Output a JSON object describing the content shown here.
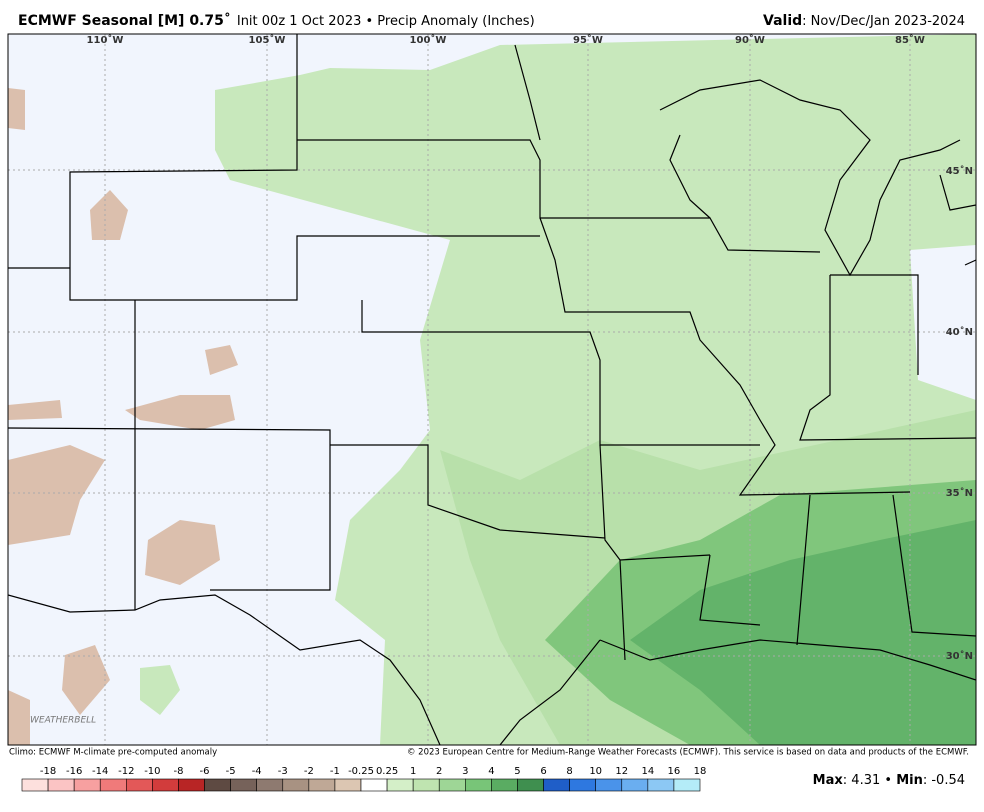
{
  "header": {
    "title": "ECMWF Seasonal [M] 0.75˚",
    "subtitle": "Init 00z 1 Oct 2023 • Precip Anomaly (Inches)",
    "valid_label": "Valid",
    "valid_value": ": Nov/Dec/Jan 2023-2024"
  },
  "map": {
    "longitude_labels": [
      "110˚W",
      "105˚W",
      "100˚W",
      "95˚W",
      "90˚W",
      "85˚W"
    ],
    "latitude_labels": [
      "45˚N",
      "40˚N",
      "35˚N",
      "30˚N"
    ],
    "watermark": "WEATHERBELL"
  },
  "footer": {
    "climo": "Climo: ECMWF M-climate pre-computed anomaly",
    "copyright": "© 2023 European Centre for Medium-Range Weather Forecasts (ECMWF). This service is based on data and products of the ECMWF."
  },
  "colorbar": {
    "labels": [
      -18,
      -16,
      -14,
      -12,
      -10,
      -8,
      -6,
      -5,
      -4,
      -3,
      -2,
      -1,
      -0.25,
      0.25,
      1,
      2,
      3,
      4,
      5,
      6,
      8,
      10,
      12,
      14,
      16,
      18
    ],
    "colors": [
      "#fde0dd",
      "#fbc4c4",
      "#f7a0a0",
      "#f07a7a",
      "#e35858",
      "#d23c3c",
      "#b82525",
      "#5e4a42",
      "#76625a",
      "#8e7a70",
      "#a89282",
      "#bfa896",
      "#dcc6b2",
      "#ffffff",
      "#d4efc8",
      "#bfe4b0",
      "#9ed696",
      "#78c578",
      "#5aac62",
      "#3f8f4f",
      "#1f5ec8",
      "#2e78e0",
      "#4a93ea",
      "#6aaef0",
      "#8cc8f4",
      "#b4ecf8"
    ]
  },
  "stats": {
    "max_label": "Max",
    "max_value": 4.31,
    "min_label": "Min",
    "min_value": -0.54
  }
}
